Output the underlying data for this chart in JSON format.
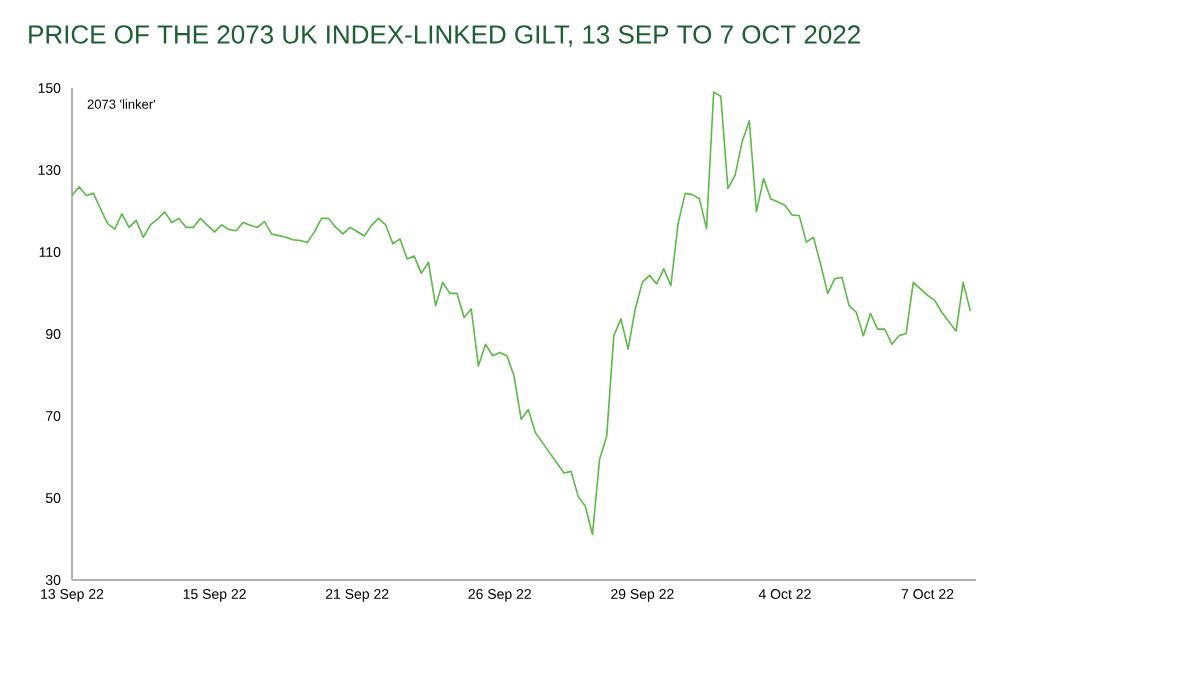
{
  "chart_data": {
    "type": "line",
    "title": "PRICE OF THE 2073 UK INDEX-LINKED GILT, 13 SEP TO 7 OCT 2022",
    "ylabel": "2073 'linker'",
    "ylim": [
      30,
      150
    ],
    "yticks": [
      30,
      50,
      70,
      90,
      110,
      130,
      150
    ],
    "categories": [
      "13 Sep 22",
      null,
      null,
      null,
      null,
      null,
      null,
      null,
      null,
      null,
      null,
      null,
      null,
      null,
      null,
      null,
      null,
      null,
      null,
      null,
      "15 Sep 22",
      null,
      null,
      null,
      null,
      null,
      null,
      null,
      null,
      null,
      null,
      null,
      null,
      null,
      null,
      null,
      null,
      null,
      null,
      null,
      "21 Sep 22",
      null,
      null,
      null,
      null,
      null,
      null,
      null,
      null,
      null,
      null,
      null,
      null,
      null,
      null,
      null,
      null,
      null,
      null,
      null,
      "26 Sep 22",
      null,
      null,
      null,
      null,
      null,
      null,
      null,
      null,
      null,
      null,
      null,
      null,
      null,
      null,
      null,
      null,
      null,
      null,
      null,
      "29 Sep 22",
      null,
      null,
      null,
      null,
      null,
      null,
      null,
      null,
      null,
      null,
      null,
      null,
      null,
      null,
      null,
      null,
      null,
      null,
      null,
      "4 Oct 22",
      null,
      null,
      null,
      null,
      null,
      null,
      null,
      null,
      null,
      null,
      null,
      null,
      null,
      null,
      null,
      null,
      null,
      null,
      null,
      "7 Oct 22",
      null,
      null,
      null,
      null,
      null,
      null
    ],
    "series": [
      {
        "color": "#5cb848",
        "values": [
          123.8,
          125.9,
          123.8,
          124.3,
          120.5,
          116.9,
          115.6,
          119.3,
          116,
          117.7,
          113.6,
          116.6,
          118,
          119.8,
          117.2,
          118.2,
          116,
          116,
          118.2,
          116.5,
          114.9,
          116.6,
          115.5,
          115.2,
          117.2,
          116.5,
          116,
          117.4,
          114.4,
          114,
          113.6,
          113,
          112.8,
          112.3,
          114.9,
          118.2,
          118.2,
          116,
          114.4,
          116,
          115,
          113.9,
          116.5,
          118.2,
          116.6,
          112,
          113.2,
          108.3,
          109,
          104.8,
          107.5,
          96.9,
          102.6,
          99.9,
          99.9,
          94,
          96.1,
          82.2,
          87.5,
          84.7,
          85.5,
          84.7,
          79.8,
          69.2,
          71.6,
          65.9,
          63.5,
          61,
          58.6,
          56.1,
          56.5,
          50.4,
          48,
          41.1,
          59.4,
          65.1,
          89.6,
          93.7,
          86.3,
          96.1,
          102.6,
          104.3,
          102.2,
          105.9,
          101.8,
          116.8,
          124.3,
          124,
          123,
          115.7,
          149,
          148,
          125.5,
          128.7,
          136.9,
          142,
          119.8,
          127.9,
          123,
          122.2,
          121.4,
          119,
          118.9,
          112.4,
          113.6,
          107,
          99.9,
          103.5,
          103.8,
          96.9,
          95.3,
          89.6,
          95,
          91.2,
          91.2,
          87.5,
          89.6,
          90.1,
          102.6,
          101,
          99.4,
          98.2,
          95.3,
          93,
          90.7,
          102.6,
          95.6
        ]
      }
    ]
  }
}
